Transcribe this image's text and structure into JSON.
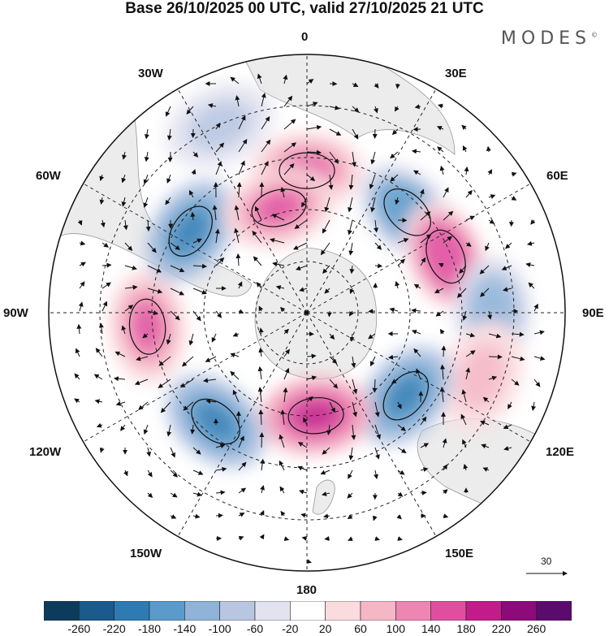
{
  "title": "Base 26/10/2025 00 UTC, valid 27/10/2025 21 UTC",
  "logo": "MODES",
  "logo_mark": "©",
  "meridian_labels": {
    "lon0": "0",
    "lon30e": "30E",
    "lon60e": "60E",
    "lon90e": "90E",
    "lon120e": "120E",
    "lon150e": "150E",
    "lon180": "180",
    "lon150w": "150W",
    "lon120w": "120W",
    "lon90w": "90W",
    "lon60w": "60W",
    "lon30w": "30W"
  },
  "reference_vector": {
    "value": "30"
  },
  "colorbar": {
    "ticks": [
      "-260",
      "-220",
      "-180",
      "-140",
      "-100",
      "-60",
      "-20",
      "20",
      "60",
      "100",
      "140",
      "180",
      "220",
      "260"
    ],
    "colors": [
      "#0d3b5e",
      "#1a5a8c",
      "#2e7bb4",
      "#5a9bcb",
      "#8fb3d9",
      "#b8c6e2",
      "#e3e3f0",
      "#ffffff",
      "#fadcdf",
      "#f5b7c5",
      "#ee86b2",
      "#e04f9f",
      "#c21c8a",
      "#8c0a7a",
      "#5b0a6e"
    ]
  },
  "anomaly_centers": [
    {
      "name": "center-n-pos",
      "lon": 0,
      "colat": 0.55,
      "value": 150
    },
    {
      "name": "center-ne-neg",
      "lon": 45,
      "colat": 0.55,
      "value": -170
    },
    {
      "name": "center-e-pos",
      "lon": 68,
      "colat": 0.58,
      "value": 170
    },
    {
      "name": "center-e-neg",
      "lon": 90,
      "colat": 0.72,
      "value": -140
    },
    {
      "name": "center-se-pos",
      "lon": 110,
      "colat": 0.72,
      "value": 80
    },
    {
      "name": "center-se-neg",
      "lon": 130,
      "colat": 0.5,
      "value": -200
    },
    {
      "name": "center-s-pos",
      "lon": 175,
      "colat": 0.4,
      "value": 190
    },
    {
      "name": "center-sw-neg",
      "lon": -140,
      "colat": 0.55,
      "value": -200
    },
    {
      "name": "center-w-pos",
      "lon": -95,
      "colat": 0.62,
      "value": 160
    },
    {
      "name": "center-nw-neg",
      "lon": -55,
      "colat": 0.55,
      "value": -190
    },
    {
      "name": "center-n2-pos",
      "lon": -15,
      "colat": 0.42,
      "value": 150
    },
    {
      "name": "center-nnw-neg",
      "lon": -25,
      "colat": 0.8,
      "value": -90
    }
  ]
}
